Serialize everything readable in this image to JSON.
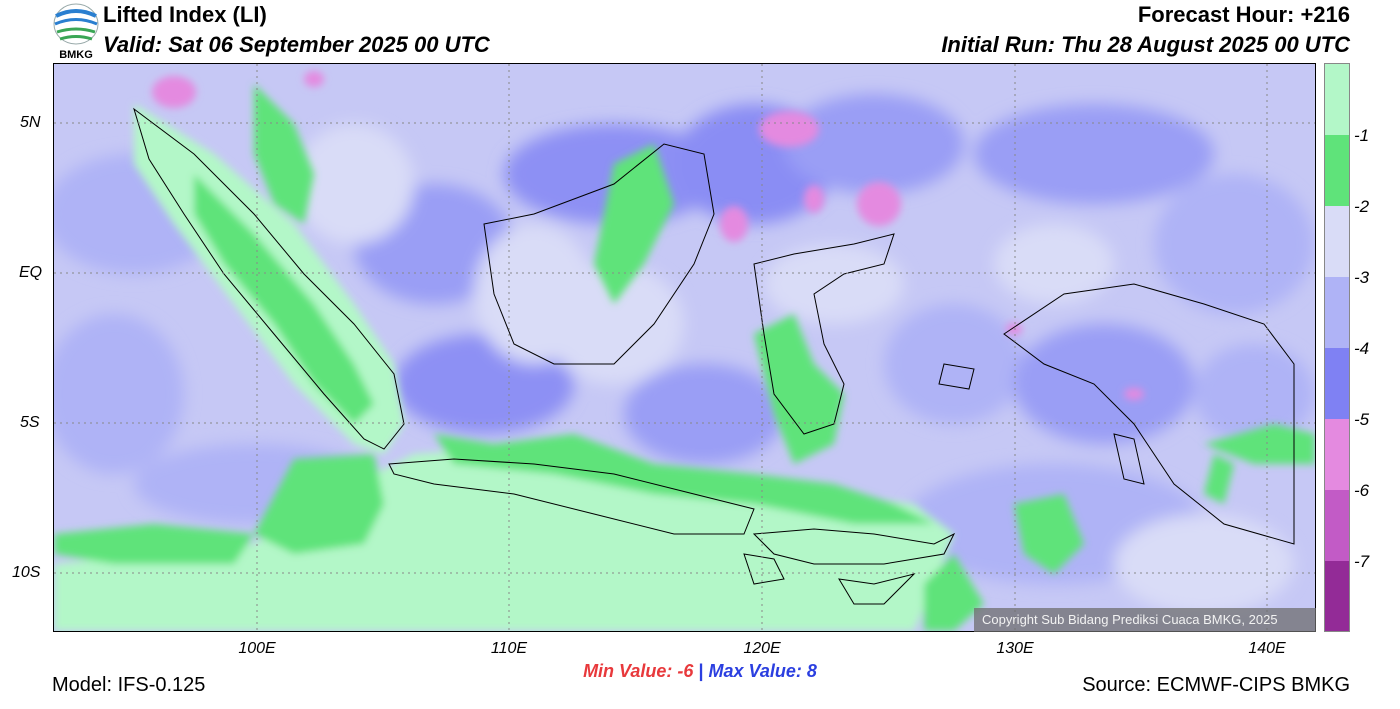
{
  "header": {
    "title": "Lifted Index (LI)",
    "valid": "Valid: Sat 06 September 2025 00 UTC",
    "forecast_hour": "Forecast Hour: +216",
    "initial_run": "Initial Run: Thu 28 August 2025 00 UTC",
    "logo_text": "BMKG"
  },
  "map": {
    "lat_labels": [
      "5N",
      "EQ",
      "5S",
      "10S"
    ],
    "lon_labels": [
      "100E",
      "110E",
      "120E",
      "130E",
      "140E"
    ],
    "copyright": "Copyright Sub Bidang Prediksi Cuaca BMKG, 2025",
    "lat_range": [
      -12,
      7
    ],
    "lon_range": [
      92,
      142
    ]
  },
  "colorbar": {
    "labels": [
      "-1",
      "-2",
      "-3",
      "-4",
      "-5",
      "-6",
      "-7"
    ],
    "colors": [
      "#b3f7c8",
      "#5fe37a",
      "#d9dcf7",
      "#afb3f6",
      "#7f81f3",
      "#e48ae0",
      "#c25bc6",
      "#932b97"
    ]
  },
  "footer": {
    "min_label": "Min Value:",
    "min_value": "-6",
    "separator": "|",
    "max_label": "Max Value:",
    "max_value": "8",
    "model": "Model: IFS-0.125",
    "source": "Source: ECMWF-CIPS BMKG"
  }
}
